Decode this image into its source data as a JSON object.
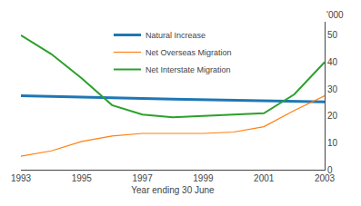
{
  "chart_data": {
    "type": "line",
    "xlabel": "Year ending 30 June",
    "ylabel": "'000",
    "x": [
      1993,
      1994,
      1995,
      1996,
      1997,
      1998,
      1999,
      2000,
      2001,
      2002,
      2003
    ],
    "series": [
      {
        "name": "Natural Increase",
        "values": [
          27.5,
          27.3,
          27.1,
          26.8,
          26.5,
          26.2,
          26.0,
          25.8,
          25.5,
          25.3,
          25.2
        ]
      },
      {
        "name": "Net Overseas Migration",
        "values": [
          5.0,
          7.0,
          10.5,
          12.5,
          13.5,
          13.5,
          13.5,
          14.0,
          16.0,
          22.0,
          27.5
        ]
      },
      {
        "name": "Net Interstate Migration",
        "values": [
          50.0,
          43.0,
          34.0,
          24.0,
          20.5,
          19.5,
          20.0,
          20.5,
          21.0,
          28.0,
          40.0
        ]
      }
    ],
    "xlim": [
      1993,
      2003
    ],
    "xticks": [
      1993,
      1995,
      1997,
      1999,
      2001,
      2003
    ],
    "ylim": [
      0,
      55
    ],
    "yticks": [
      0,
      10,
      20,
      30,
      40,
      50
    ],
    "grid": false,
    "legend": "upper center"
  }
}
